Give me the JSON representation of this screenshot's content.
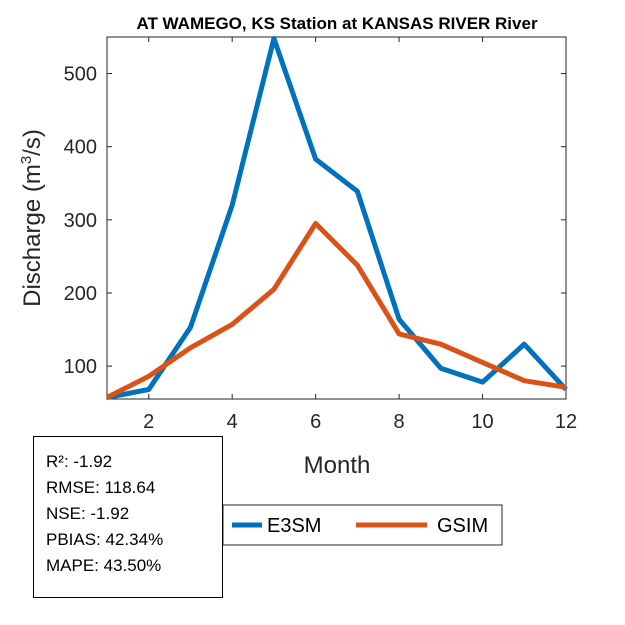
{
  "chart_data": {
    "type": "line",
    "title": "AT WAMEGO, KS  Station at  KANSAS RIVER  River",
    "xlabel": "Month",
    "ylabel_main": "Discharge (m",
    "ylabel_sup": "3",
    "ylabel_end": "/s)",
    "xlim": [
      1,
      12
    ],
    "ylim": [
      55,
      550
    ],
    "xticks": [
      2,
      4,
      6,
      8,
      10,
      12
    ],
    "yticks": [
      100,
      200,
      300,
      400,
      500
    ],
    "x": [
      1,
      2,
      3,
      4,
      5,
      6,
      7,
      8,
      9,
      10,
      11,
      12
    ],
    "series": [
      {
        "name": "E3SM",
        "color": "#0072BD",
        "values": [
          57,
          68,
          153,
          320,
          548,
          383,
          339,
          164,
          97,
          78,
          130,
          68
        ]
      },
      {
        "name": "GSIM",
        "color": "#D95319",
        "values": [
          57,
          86,
          125,
          157,
          205,
          295,
          238,
          144,
          130,
          105,
          80,
          71
        ]
      }
    ],
    "grid": false,
    "legend_position": "bottom"
  },
  "stats": {
    "r2": "R²: -1.92",
    "rmse": "RMSE: 118.64",
    "nse": "NSE: -1.92",
    "pbias": "PBIAS: 42.34%",
    "mape": "MAPE: 43.50%"
  }
}
